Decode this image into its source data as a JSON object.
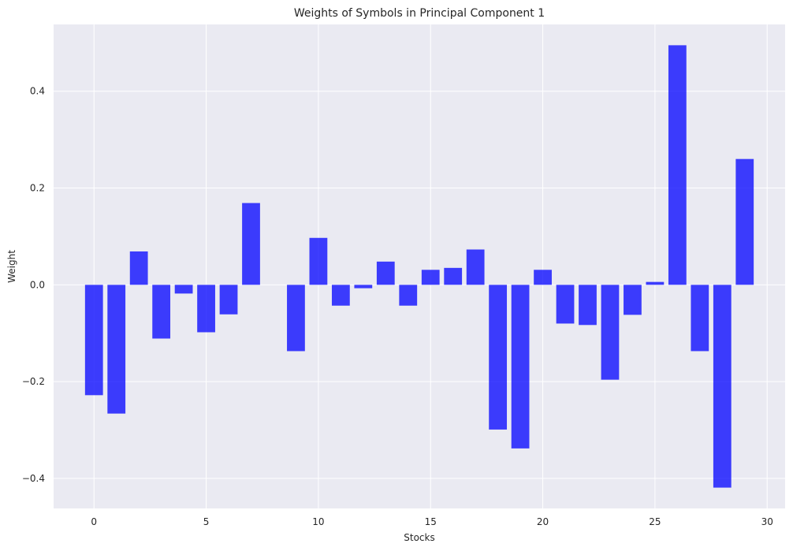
{
  "chart_data": {
    "type": "bar",
    "title": "Weights of Symbols in Principal Component 1",
    "xlabel": "Stocks",
    "ylabel": "Weight",
    "x": [
      0,
      1,
      2,
      3,
      4,
      5,
      6,
      7,
      8,
      9,
      10,
      11,
      12,
      13,
      14,
      15,
      16,
      17,
      18,
      19,
      20,
      21,
      22,
      23,
      24,
      25,
      26,
      27,
      28,
      29
    ],
    "values": [
      -0.228,
      -0.266,
      0.069,
      -0.111,
      -0.018,
      -0.098,
      -0.061,
      0.169,
      0.0,
      -0.137,
      0.097,
      -0.043,
      -0.007,
      0.048,
      -0.043,
      0.031,
      0.035,
      0.073,
      -0.299,
      -0.338,
      0.031,
      -0.08,
      -0.083,
      -0.196,
      -0.062,
      0.006,
      0.495,
      -0.137,
      -0.419,
      0.26
    ],
    "xlim": [
      -1.8,
      30.8
    ],
    "ylim": [
      -0.462,
      0.538
    ],
    "xticks": [
      0,
      5,
      10,
      15,
      20,
      25,
      30
    ],
    "xtick_labels": [
      "0",
      "5",
      "10",
      "15",
      "20",
      "25",
      "30"
    ],
    "yticks": [
      -0.4,
      -0.2,
      0.0,
      0.2,
      0.4
    ],
    "ytick_labels": [
      "−0.4",
      "−0.2",
      "0.0",
      "0.2",
      "0.4"
    ],
    "grid": true,
    "bar_color": "#0000ff",
    "background_color": "#eaeaf2"
  }
}
